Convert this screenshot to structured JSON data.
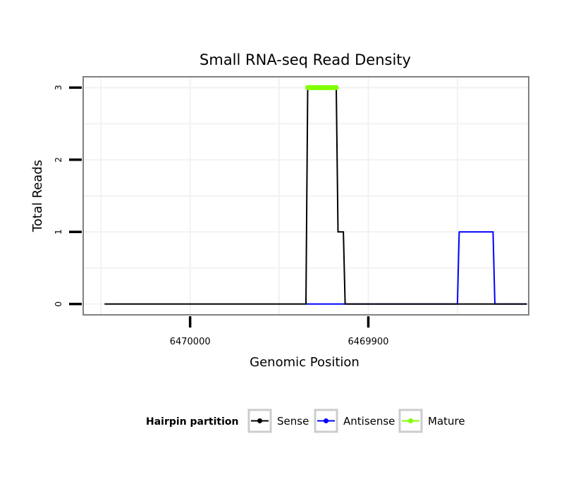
{
  "chart_data": {
    "type": "line",
    "title": "Small RNA-seq Read Density",
    "xlabel": "Genomic Position",
    "ylabel": "Total Reads",
    "x_reversed": true,
    "xlim": [
      6470060,
      6469810
    ],
    "ylim": [
      -0.15,
      3.15
    ],
    "x_ticks": [
      6470000,
      6469900
    ],
    "x_tick_labels": [
      "6470000",
      "6469900"
    ],
    "y_ticks": [
      0,
      1,
      2,
      3
    ],
    "y_tick_labels": [
      "0",
      "1",
      "2",
      "3"
    ],
    "grid": true,
    "legend_position": "bottom",
    "legend_title": "Hairpin partition",
    "series": [
      {
        "name": "Sense",
        "color": "#000000",
        "x": [
          6470048,
          6469935,
          6469934,
          6469918,
          6469917,
          6469914,
          6469913,
          6469912,
          6469811
        ],
        "y": [
          0,
          0,
          3,
          3,
          1,
          1,
          0,
          0,
          0
        ]
      },
      {
        "name": "Antisense",
        "color": "#0000ff",
        "x": [
          6469935,
          6469912,
          6469912,
          6469850,
          6469849,
          6469830,
          6469829,
          6469811
        ],
        "y": [
          0,
          0,
          0,
          0,
          1,
          1,
          0,
          0
        ]
      },
      {
        "name": "Mature",
        "color": "#80ff00",
        "x": [
          6469934,
          6469918
        ],
        "y": [
          3,
          3
        ]
      }
    ]
  }
}
